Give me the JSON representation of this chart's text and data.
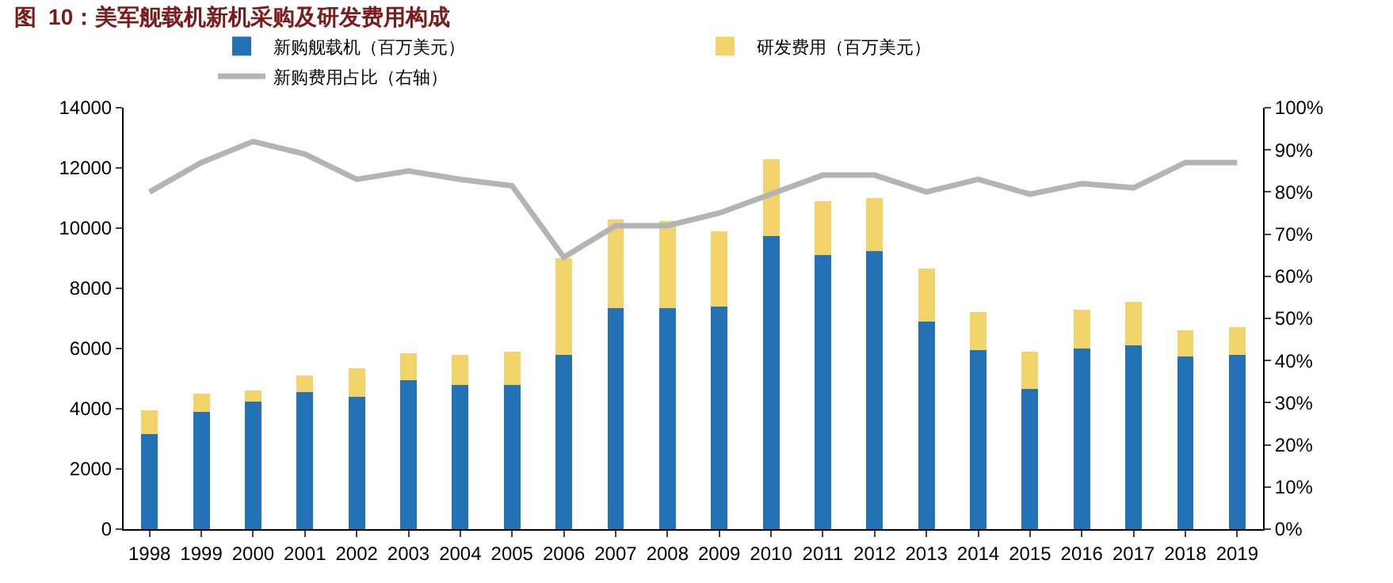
{
  "chart_data": {
    "type": "bar",
    "title": "图  10：美军舰载机新机采购及研发费用构成",
    "stacked": true,
    "categories": [
      "1998",
      "1999",
      "2000",
      "2001",
      "2002",
      "2003",
      "2004",
      "2005",
      "2006",
      "2007",
      "2008",
      "2009",
      "2010",
      "2011",
      "2012",
      "2013",
      "2014",
      "2015",
      "2016",
      "2017",
      "2018",
      "2019"
    ],
    "series": [
      {
        "name": "新购舰载机（百万美元）",
        "color": "#2372b5",
        "values": [
          3150,
          3900,
          4250,
          4550,
          4400,
          4950,
          4800,
          4800,
          5800,
          7350,
          7350,
          7400,
          9750,
          9100,
          9250,
          6900,
          5950,
          4650,
          6000,
          6100,
          5750,
          5800
        ]
      },
      {
        "name": "研发费用（百万美元）",
        "color": "#f2d46b",
        "values": [
          800,
          600,
          350,
          550,
          950,
          900,
          1000,
          1100,
          3200,
          2950,
          2900,
          2500,
          2550,
          1800,
          1750,
          1750,
          1250,
          1250,
          1300,
          1450,
          850,
          900
        ]
      },
      {
        "name": "新购费用占比（右轴）",
        "type": "line",
        "axis": "y2",
        "color": "#b4b4b4",
        "values": [
          80,
          87,
          92,
          89,
          83,
          85,
          83,
          81.5,
          64.5,
          72,
          72,
          75,
          79.5,
          84,
          84,
          80,
          83,
          79.5,
          82,
          81,
          87,
          87
        ]
      }
    ],
    "ylim": [
      0,
      14000
    ],
    "yticks": [
      0,
      2000,
      4000,
      6000,
      8000,
      10000,
      12000,
      14000
    ],
    "y2lim": [
      0,
      100
    ],
    "y2ticks": [
      {
        "value": 0,
        "label": "0%"
      },
      {
        "value": 10,
        "label": "10%"
      },
      {
        "value": 20,
        "label": "20%"
      },
      {
        "value": 30,
        "label": "30%"
      },
      {
        "value": 40,
        "label": "40%"
      },
      {
        "value": 50,
        "label": "50%"
      },
      {
        "value": 60,
        "label": "60%"
      },
      {
        "value": 70,
        "label": "70%"
      },
      {
        "value": 80,
        "label": "80%"
      },
      {
        "value": 90,
        "label": "90%"
      },
      {
        "value": 100,
        "label": "100%"
      }
    ],
    "grid": false,
    "legend": "top",
    "marker": "none",
    "line_style": "solid"
  }
}
